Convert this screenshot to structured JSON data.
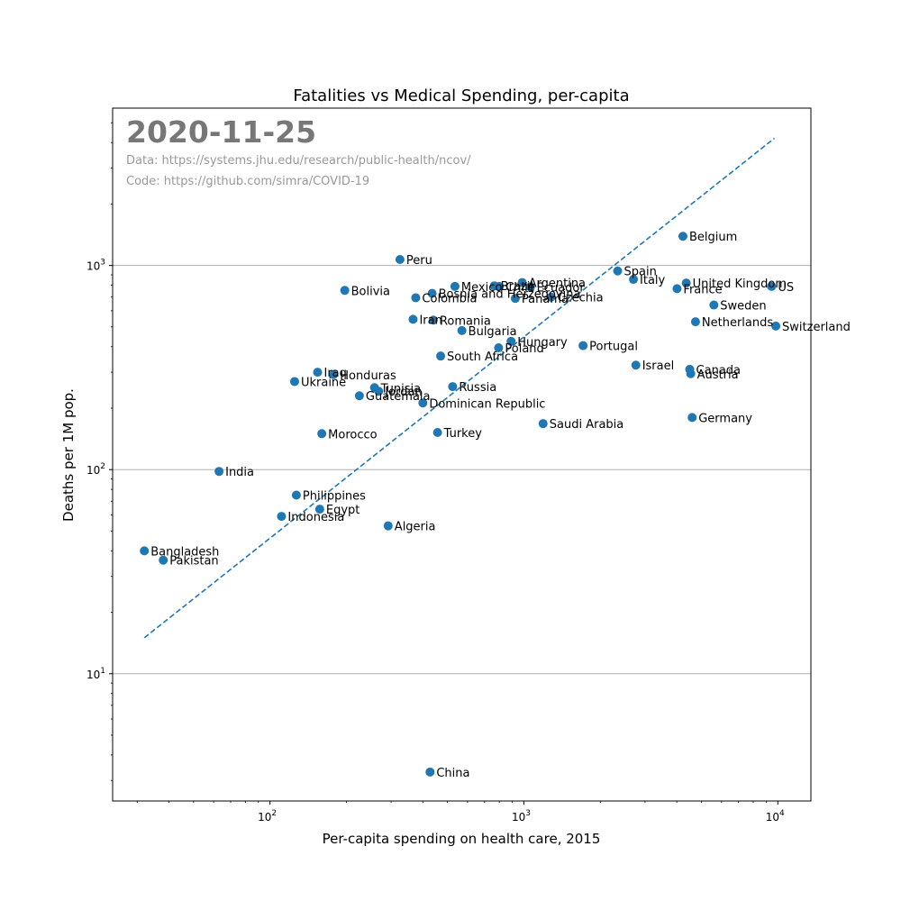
{
  "chart_data": {
    "type": "scatter",
    "title": "Fatalities vs Medical Spending, per-capita",
    "xlabel": "Per-capita spending on health care, 2015",
    "ylabel": "Deaths per 1M pop.",
    "xscale": "log",
    "yscale": "log",
    "xlim": [
      24,
      13500
    ],
    "ylim": [
      2.38,
      5900
    ],
    "grid": "y-major",
    "annotation_date": "2020-11-25",
    "source_data": "Data: https://systems.jhu.edu/research/public-health/ncov/",
    "source_code": "Code: https://github.com/simra/COVID-19",
    "xticks": [
      {
        "value": 100,
        "label": "10",
        "exp": "2"
      },
      {
        "value": 1000,
        "label": "10",
        "exp": "3"
      },
      {
        "value": 10000,
        "label": "10",
        "exp": "4"
      }
    ],
    "yticks": [
      {
        "value": 10,
        "label": "10",
        "exp": "1"
      },
      {
        "value": 100,
        "label": "10",
        "exp": "2"
      },
      {
        "value": 1000,
        "label": "10",
        "exp": "3"
      }
    ],
    "trendline": {
      "x": [
        32,
        9700
      ],
      "y": [
        15,
        4200
      ]
    },
    "point_color": "#1f77b4",
    "trend_color": "#1f77b4",
    "points": [
      {
        "label": "Peru",
        "x": 325,
        "y": 1070
      },
      {
        "label": "Bolivia",
        "x": 197,
        "y": 755
      },
      {
        "label": "Bosnia and Herzegovina",
        "x": 435,
        "y": 730
      },
      {
        "label": "Colombia",
        "x": 375,
        "y": 695
      },
      {
        "label": "Iran",
        "x": 366,
        "y": 545
      },
      {
        "label": "Romania",
        "x": 440,
        "y": 540
      },
      {
        "label": "Mexico",
        "x": 535,
        "y": 790
      },
      {
        "label": "Brazil",
        "x": 765,
        "y": 795
      },
      {
        "label": "Chile",
        "x": 800,
        "y": 790
      },
      {
        "label": "Argentina",
        "x": 985,
        "y": 825
      },
      {
        "label": "Ecuador",
        "x": 1060,
        "y": 785
      },
      {
        "label": "Czechia",
        "x": 1280,
        "y": 700
      },
      {
        "label": "Panama",
        "x": 925,
        "y": 690
      },
      {
        "label": "Bulgaria",
        "x": 570,
        "y": 480
      },
      {
        "label": "Hungary",
        "x": 890,
        "y": 425
      },
      {
        "label": "Poland",
        "x": 795,
        "y": 395
      },
      {
        "label": "South Africa",
        "x": 470,
        "y": 360
      },
      {
        "label": "Portugal",
        "x": 1710,
        "y": 405
      },
      {
        "label": "Spain",
        "x": 2340,
        "y": 940
      },
      {
        "label": "Italy",
        "x": 2700,
        "y": 855
      },
      {
        "label": "Belgium",
        "x": 4230,
        "y": 1390
      },
      {
        "label": "United Kingdom",
        "x": 4360,
        "y": 820
      },
      {
        "label": "France",
        "x": 4010,
        "y": 770
      },
      {
        "label": "US",
        "x": 9450,
        "y": 790
      },
      {
        "label": "Sweden",
        "x": 5600,
        "y": 640
      },
      {
        "label": "Netherlands",
        "x": 4740,
        "y": 530
      },
      {
        "label": "Switzerland",
        "x": 9820,
        "y": 505
      },
      {
        "label": "Israel",
        "x": 2760,
        "y": 325
      },
      {
        "label": "Canada",
        "x": 4500,
        "y": 310
      },
      {
        "label": "Austria",
        "x": 4540,
        "y": 295
      },
      {
        "label": "Germany",
        "x": 4600,
        "y": 180
      },
      {
        "label": "Iraq",
        "x": 154,
        "y": 300
      },
      {
        "label": "Honduras",
        "x": 178,
        "y": 292
      },
      {
        "label": "Ukraine",
        "x": 125,
        "y": 270
      },
      {
        "label": "Tunisia",
        "x": 258,
        "y": 252
      },
      {
        "label": "Jordan",
        "x": 268,
        "y": 242
      },
      {
        "label": "Guatemala",
        "x": 225,
        "y": 230
      },
      {
        "label": "Russia",
        "x": 524,
        "y": 255
      },
      {
        "label": "Dominican Republic",
        "x": 400,
        "y": 212
      },
      {
        "label": "Saudi Arabia",
        "x": 1190,
        "y": 168
      },
      {
        "label": "Turkey",
        "x": 457,
        "y": 152
      },
      {
        "label": "Morocco",
        "x": 160,
        "y": 150
      },
      {
        "label": "India",
        "x": 63,
        "y": 98
      },
      {
        "label": "Philippines",
        "x": 127,
        "y": 75
      },
      {
        "label": "Egypt",
        "x": 157,
        "y": 64
      },
      {
        "label": "Indonesia",
        "x": 111,
        "y": 59
      },
      {
        "label": "Algeria",
        "x": 292,
        "y": 53
      },
      {
        "label": "Bangladesh",
        "x": 32,
        "y": 40
      },
      {
        "label": "Pakistan",
        "x": 38,
        "y": 36
      },
      {
        "label": "China",
        "x": 427,
        "y": 3.3
      }
    ]
  }
}
